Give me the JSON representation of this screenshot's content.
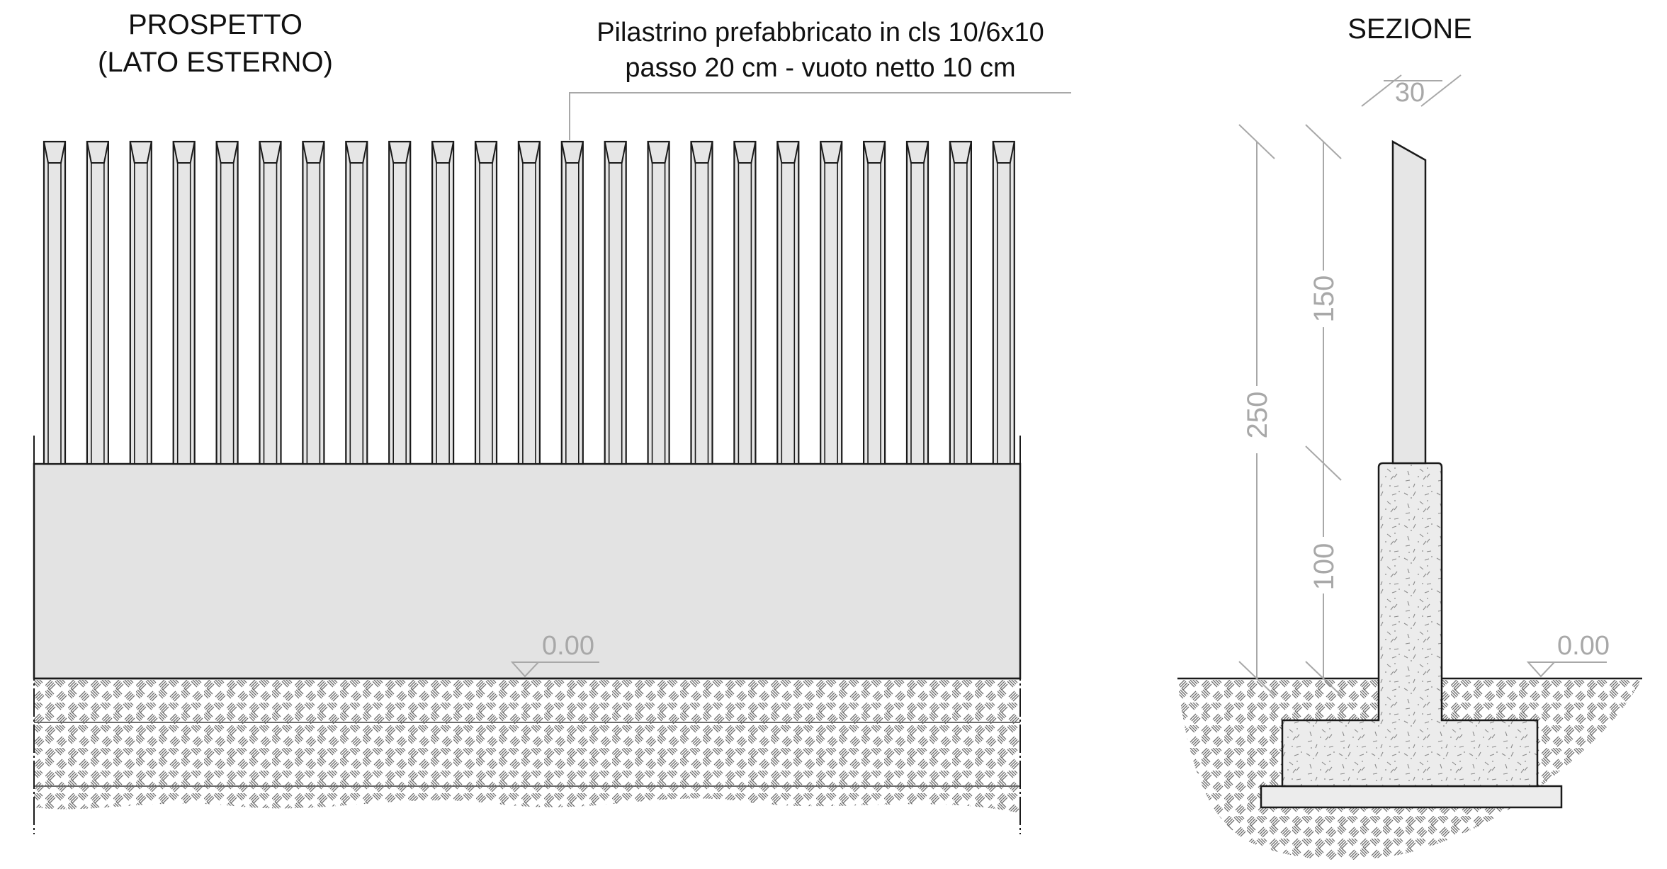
{
  "elevation": {
    "title_line1": "PROSPETTO",
    "title_line2": "(LATO ESTERNO)",
    "level_label": "0.00",
    "post_count": 23
  },
  "annotation": {
    "line1": "Pilastrino prefabbricato in cls 10/6x10",
    "line2": "passo 20 cm  -  vuoto netto 10 cm"
  },
  "section": {
    "title": "SEZIONE",
    "dim_top": "30",
    "dim_total": "250",
    "dim_upper": "150",
    "dim_lower": "100",
    "level_label": "0.00"
  },
  "colors": {
    "line": "#1a1a1a",
    "wall_fill": "#e3e3e3",
    "post_fill": "#e6e6e6",
    "concrete_fill": "#ececec",
    "dimension": "#a8a8a8",
    "hatch": "#6f6f6f"
  }
}
